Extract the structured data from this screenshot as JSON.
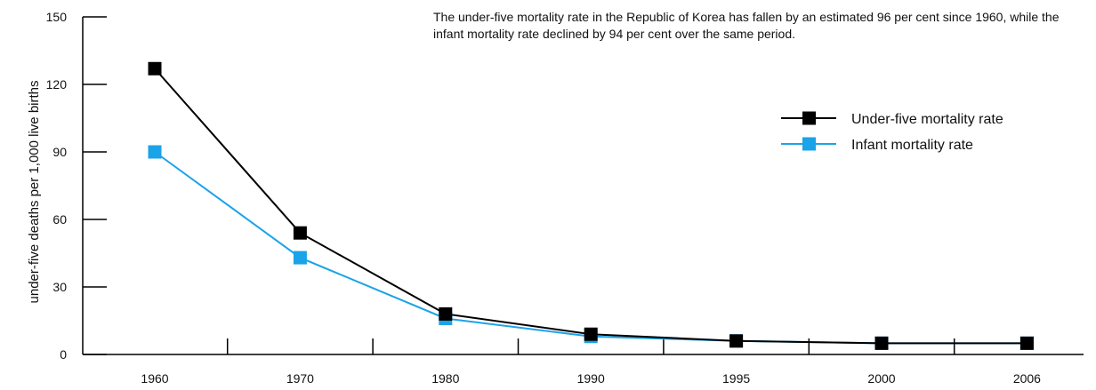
{
  "chart_data": {
    "type": "line",
    "categories": [
      "1960",
      "1970",
      "1980",
      "1990",
      "1995",
      "2000",
      "2006"
    ],
    "series": [
      {
        "name": "Under-five mortality rate",
        "values": [
          127,
          54,
          18,
          9,
          6,
          5,
          5
        ],
        "color": "#000000"
      },
      {
        "name": "Infant mortality rate",
        "values": [
          90,
          43,
          16,
          8,
          6,
          5,
          5
        ],
        "color": "#1aa3e8"
      }
    ],
    "ylabel": "under-five deaths per 1,000 live births",
    "xlabel": "",
    "ylim": [
      0,
      150
    ],
    "yticks": [
      0,
      30,
      60,
      90,
      120,
      150
    ],
    "annotation": "The under-five mortality rate in the Republic of Korea has fallen by an estimated 96 per cent since 1960, while the infant mortality rate declined by 94 per cent over the same period.",
    "legend_position": "right",
    "grid": false
  }
}
